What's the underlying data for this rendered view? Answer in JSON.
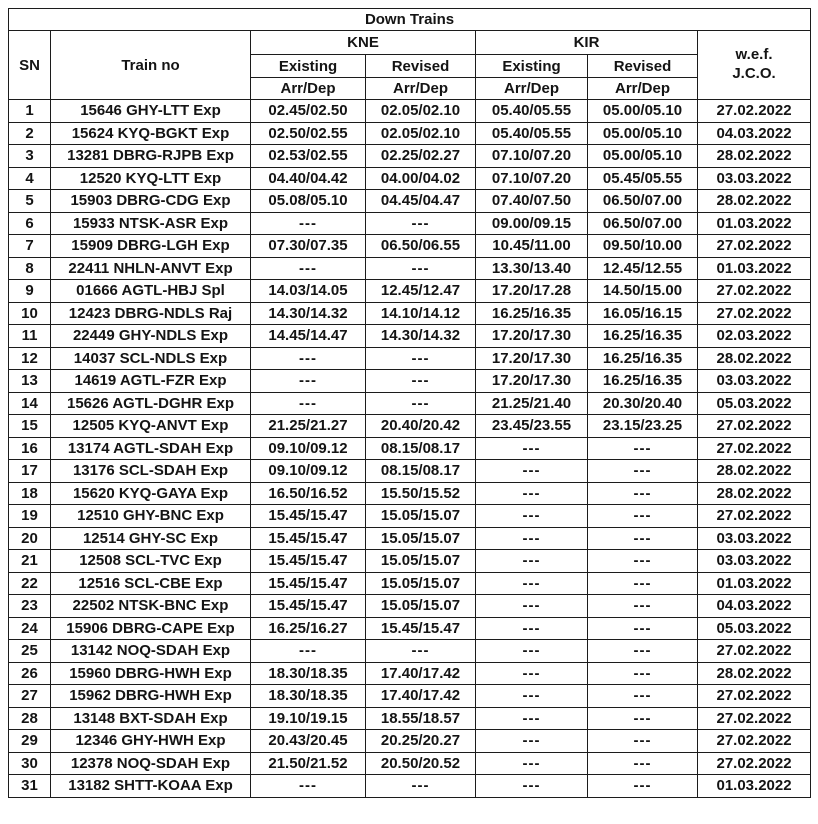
{
  "table": {
    "title": "Down Trains",
    "headers": {
      "sn": "SN",
      "train_no": "Train no",
      "kne": "KNE",
      "kir": "KIR",
      "existing": "Existing",
      "revised": "Revised",
      "arr_dep": "Arr/Dep",
      "wef_line1": "w.e.f.",
      "wef_line2": "J.C.O."
    },
    "rows": [
      {
        "sn": "1",
        "train": "15646 GHY-LTT Exp",
        "kne_existing": "02.45/02.50",
        "kne_revised": "02.05/02.10",
        "kir_existing": "05.40/05.55",
        "kir_revised": "05.00/05.10",
        "wef": "27.02.2022"
      },
      {
        "sn": "2",
        "train": "15624 KYQ-BGKT Exp",
        "kne_existing": "02.50/02.55",
        "kne_revised": "02.05/02.10",
        "kir_existing": "05.40/05.55",
        "kir_revised": "05.00/05.10",
        "wef": "04.03.2022"
      },
      {
        "sn": "3",
        "train": "13281 DBRG-RJPB Exp",
        "kne_existing": "02.53/02.55",
        "kne_revised": "02.25/02.27",
        "kir_existing": "07.10/07.20",
        "kir_revised": "05.00/05.10",
        "wef": "28.02.2022"
      },
      {
        "sn": "4",
        "train": "12520 KYQ-LTT Exp",
        "kne_existing": "04.40/04.42",
        "kne_revised": "04.00/04.02",
        "kir_existing": "07.10/07.20",
        "kir_revised": "05.45/05.55",
        "wef": "03.03.2022"
      },
      {
        "sn": "5",
        "train": "15903 DBRG-CDG Exp",
        "kne_existing": "05.08/05.10",
        "kne_revised": "04.45/04.47",
        "kir_existing": "07.40/07.50",
        "kir_revised": "06.50/07.00",
        "wef": "28.02.2022"
      },
      {
        "sn": "6",
        "train": "15933 NTSK-ASR Exp",
        "kne_existing": "---",
        "kne_revised": "---",
        "kir_existing": "09.00/09.15",
        "kir_revised": "06.50/07.00",
        "wef": "01.03.2022"
      },
      {
        "sn": "7",
        "train": "15909 DBRG-LGH Exp",
        "kne_existing": "07.30/07.35",
        "kne_revised": "06.50/06.55",
        "kir_existing": "10.45/11.00",
        "kir_revised": "09.50/10.00",
        "wef": "27.02.2022"
      },
      {
        "sn": "8",
        "train": "22411 NHLN-ANVT Exp",
        "kne_existing": "---",
        "kne_revised": "---",
        "kir_existing": "13.30/13.40",
        "kir_revised": "12.45/12.55",
        "wef": "01.03.2022"
      },
      {
        "sn": "9",
        "train": "01666 AGTL-HBJ Spl",
        "kne_existing": "14.03/14.05",
        "kne_revised": "12.45/12.47",
        "kir_existing": "17.20/17.28",
        "kir_revised": "14.50/15.00",
        "wef": "27.02.2022"
      },
      {
        "sn": "10",
        "train": "12423 DBRG-NDLS Raj",
        "kne_existing": "14.30/14.32",
        "kne_revised": "14.10/14.12",
        "kir_existing": "16.25/16.35",
        "kir_revised": "16.05/16.15",
        "wef": "27.02.2022"
      },
      {
        "sn": "11",
        "train": "22449 GHY-NDLS Exp",
        "kne_existing": "14.45/14.47",
        "kne_revised": "14.30/14.32",
        "kir_existing": "17.20/17.30",
        "kir_revised": "16.25/16.35",
        "wef": "02.03.2022"
      },
      {
        "sn": "12",
        "train": "14037 SCL-NDLS Exp",
        "kne_existing": "---",
        "kne_revised": "---",
        "kir_existing": "17.20/17.30",
        "kir_revised": "16.25/16.35",
        "wef": "28.02.2022"
      },
      {
        "sn": "13",
        "train": "14619 AGTL-FZR Exp",
        "kne_existing": "---",
        "kne_revised": "---",
        "kir_existing": "17.20/17.30",
        "kir_revised": "16.25/16.35",
        "wef": "03.03.2022"
      },
      {
        "sn": "14",
        "train": "15626 AGTL-DGHR Exp",
        "kne_existing": "---",
        "kne_revised": "---",
        "kir_existing": "21.25/21.40",
        "kir_revised": "20.30/20.40",
        "wef": "05.03.2022"
      },
      {
        "sn": "15",
        "train": "12505 KYQ-ANVT Exp",
        "kne_existing": "21.25/21.27",
        "kne_revised": "20.40/20.42",
        "kir_existing": "23.45/23.55",
        "kir_revised": "23.15/23.25",
        "wef": "27.02.2022"
      },
      {
        "sn": "16",
        "train": "13174 AGTL-SDAH Exp",
        "kne_existing": "09.10/09.12",
        "kne_revised": "08.15/08.17",
        "kir_existing": "---",
        "kir_revised": "---",
        "wef": "27.02.2022"
      },
      {
        "sn": "17",
        "train": "13176 SCL-SDAH Exp",
        "kne_existing": "09.10/09.12",
        "kne_revised": "08.15/08.17",
        "kir_existing": "---",
        "kir_revised": "---",
        "wef": "28.02.2022"
      },
      {
        "sn": "18",
        "train": "15620 KYQ-GAYA Exp",
        "kne_existing": "16.50/16.52",
        "kne_revised": "15.50/15.52",
        "kir_existing": "---",
        "kir_revised": "---",
        "wef": "28.02.2022"
      },
      {
        "sn": "19",
        "train": "12510 GHY-BNC Exp",
        "kne_existing": "15.45/15.47",
        "kne_revised": "15.05/15.07",
        "kir_existing": "---",
        "kir_revised": "---",
        "wef": "27.02.2022"
      },
      {
        "sn": "20",
        "train": "12514 GHY-SC Exp",
        "kne_existing": "15.45/15.47",
        "kne_revised": "15.05/15.07",
        "kir_existing": "---",
        "kir_revised": "---",
        "wef": "03.03.2022"
      },
      {
        "sn": "21",
        "train": "12508 SCL-TVC Exp",
        "kne_existing": "15.45/15.47",
        "kne_revised": "15.05/15.07",
        "kir_existing": "---",
        "kir_revised": "---",
        "wef": "03.03.2022"
      },
      {
        "sn": "22",
        "train": "12516 SCL-CBE Exp",
        "kne_existing": "15.45/15.47",
        "kne_revised": "15.05/15.07",
        "kir_existing": "---",
        "kir_revised": "---",
        "wef": "01.03.2022"
      },
      {
        "sn": "23",
        "train": "22502 NTSK-BNC Exp",
        "kne_existing": "15.45/15.47",
        "kne_revised": "15.05/15.07",
        "kir_existing": "---",
        "kir_revised": "---",
        "wef": "04.03.2022"
      },
      {
        "sn": "24",
        "train": "15906 DBRG-CAPE Exp",
        "kne_existing": "16.25/16.27",
        "kne_revised": "15.45/15.47",
        "kir_existing": "---",
        "kir_revised": "---",
        "wef": "05.03.2022"
      },
      {
        "sn": "25",
        "train": "13142 NOQ-SDAH Exp",
        "kne_existing": "---",
        "kne_revised": "---",
        "kir_existing": "---",
        "kir_revised": "---",
        "wef": "27.02.2022"
      },
      {
        "sn": "26",
        "train": "15960 DBRG-HWH Exp",
        "kne_existing": "18.30/18.35",
        "kne_revised": "17.40/17.42",
        "kir_existing": "---",
        "kir_revised": "---",
        "wef": "28.02.2022"
      },
      {
        "sn": "27",
        "train": "15962 DBRG-HWH Exp",
        "kne_existing": "18.30/18.35",
        "kne_revised": "17.40/17.42",
        "kir_existing": "---",
        "kir_revised": "---",
        "wef": "27.02.2022"
      },
      {
        "sn": "28",
        "train": "13148 BXT-SDAH Exp",
        "kne_existing": "19.10/19.15",
        "kne_revised": "18.55/18.57",
        "kir_existing": "---",
        "kir_revised": "---",
        "wef": "27.02.2022"
      },
      {
        "sn": "29",
        "train": "12346 GHY-HWH Exp",
        "kne_existing": "20.43/20.45",
        "kne_revised": "20.25/20.27",
        "kir_existing": "---",
        "kir_revised": "---",
        "wef": "27.02.2022"
      },
      {
        "sn": "30",
        "train": "12378 NOQ-SDAH Exp",
        "kne_existing": "21.50/21.52",
        "kne_revised": "20.50/20.52",
        "kir_existing": "---",
        "kir_revised": "---",
        "wef": "27.02.2022"
      },
      {
        "sn": "31",
        "train": "13182 SHTT-KOAA Exp",
        "kne_existing": "---",
        "kne_revised": "---",
        "kir_existing": "---",
        "kir_revised": "---",
        "wef": "01.03.2022"
      }
    ]
  }
}
